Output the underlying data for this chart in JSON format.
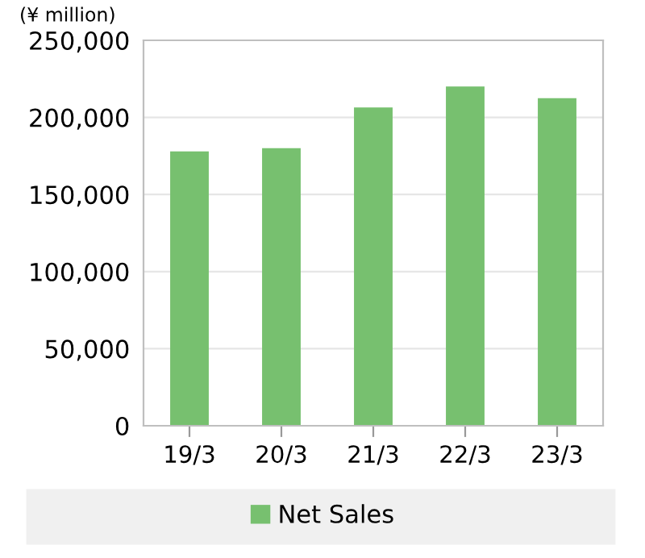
{
  "chart_data": {
    "type": "bar",
    "ylabel": "(¥ million)",
    "categories": [
      "19/3",
      "20/3",
      "21/3",
      "22/3",
      "23/3"
    ],
    "series": [
      {
        "name": "Net Sales",
        "color": "#77c06f",
        "values": [
          178000,
          180000,
          206500,
          220000,
          212500
        ]
      }
    ],
    "ylim": [
      0,
      250000
    ],
    "yticks": [
      {
        "value": 0,
        "label": "0"
      },
      {
        "value": 50000,
        "label": "50,000"
      },
      {
        "value": 100000,
        "label": "100,000"
      },
      {
        "value": 150000,
        "label": "150,000"
      },
      {
        "value": 200000,
        "label": "200,000"
      },
      {
        "value": 250000,
        "label": "250,000"
      }
    ],
    "grid": "y",
    "legend": "bottom"
  }
}
